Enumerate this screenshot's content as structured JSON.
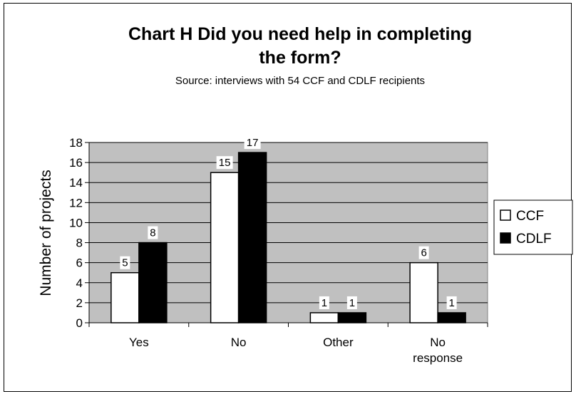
{
  "chart_data": {
    "type": "bar",
    "title_line1": "Chart H  Did you need help in completing",
    "title_line2": "the form?",
    "subtitle": "Source: interviews with 54 CCF and CDLF recipients",
    "xlabel": "",
    "ylabel": "Number of projects",
    "ylim": [
      0,
      18
    ],
    "yticks": [
      "0",
      "2",
      "4",
      "6",
      "8",
      "10",
      "12",
      "14",
      "16",
      "18"
    ],
    "categories": [
      [
        "Yes"
      ],
      [
        "No"
      ],
      [
        "Other"
      ],
      [
        "No",
        "response"
      ]
    ],
    "series": [
      {
        "name": "CCF",
        "color": "#ffffff",
        "values": [
          5,
          15,
          1,
          6
        ]
      },
      {
        "name": "CDLF",
        "color": "#000000",
        "values": [
          8,
          17,
          1,
          1
        ]
      }
    ],
    "plot_background": "#c0c0c0",
    "grid": true,
    "legend_position": "right"
  }
}
